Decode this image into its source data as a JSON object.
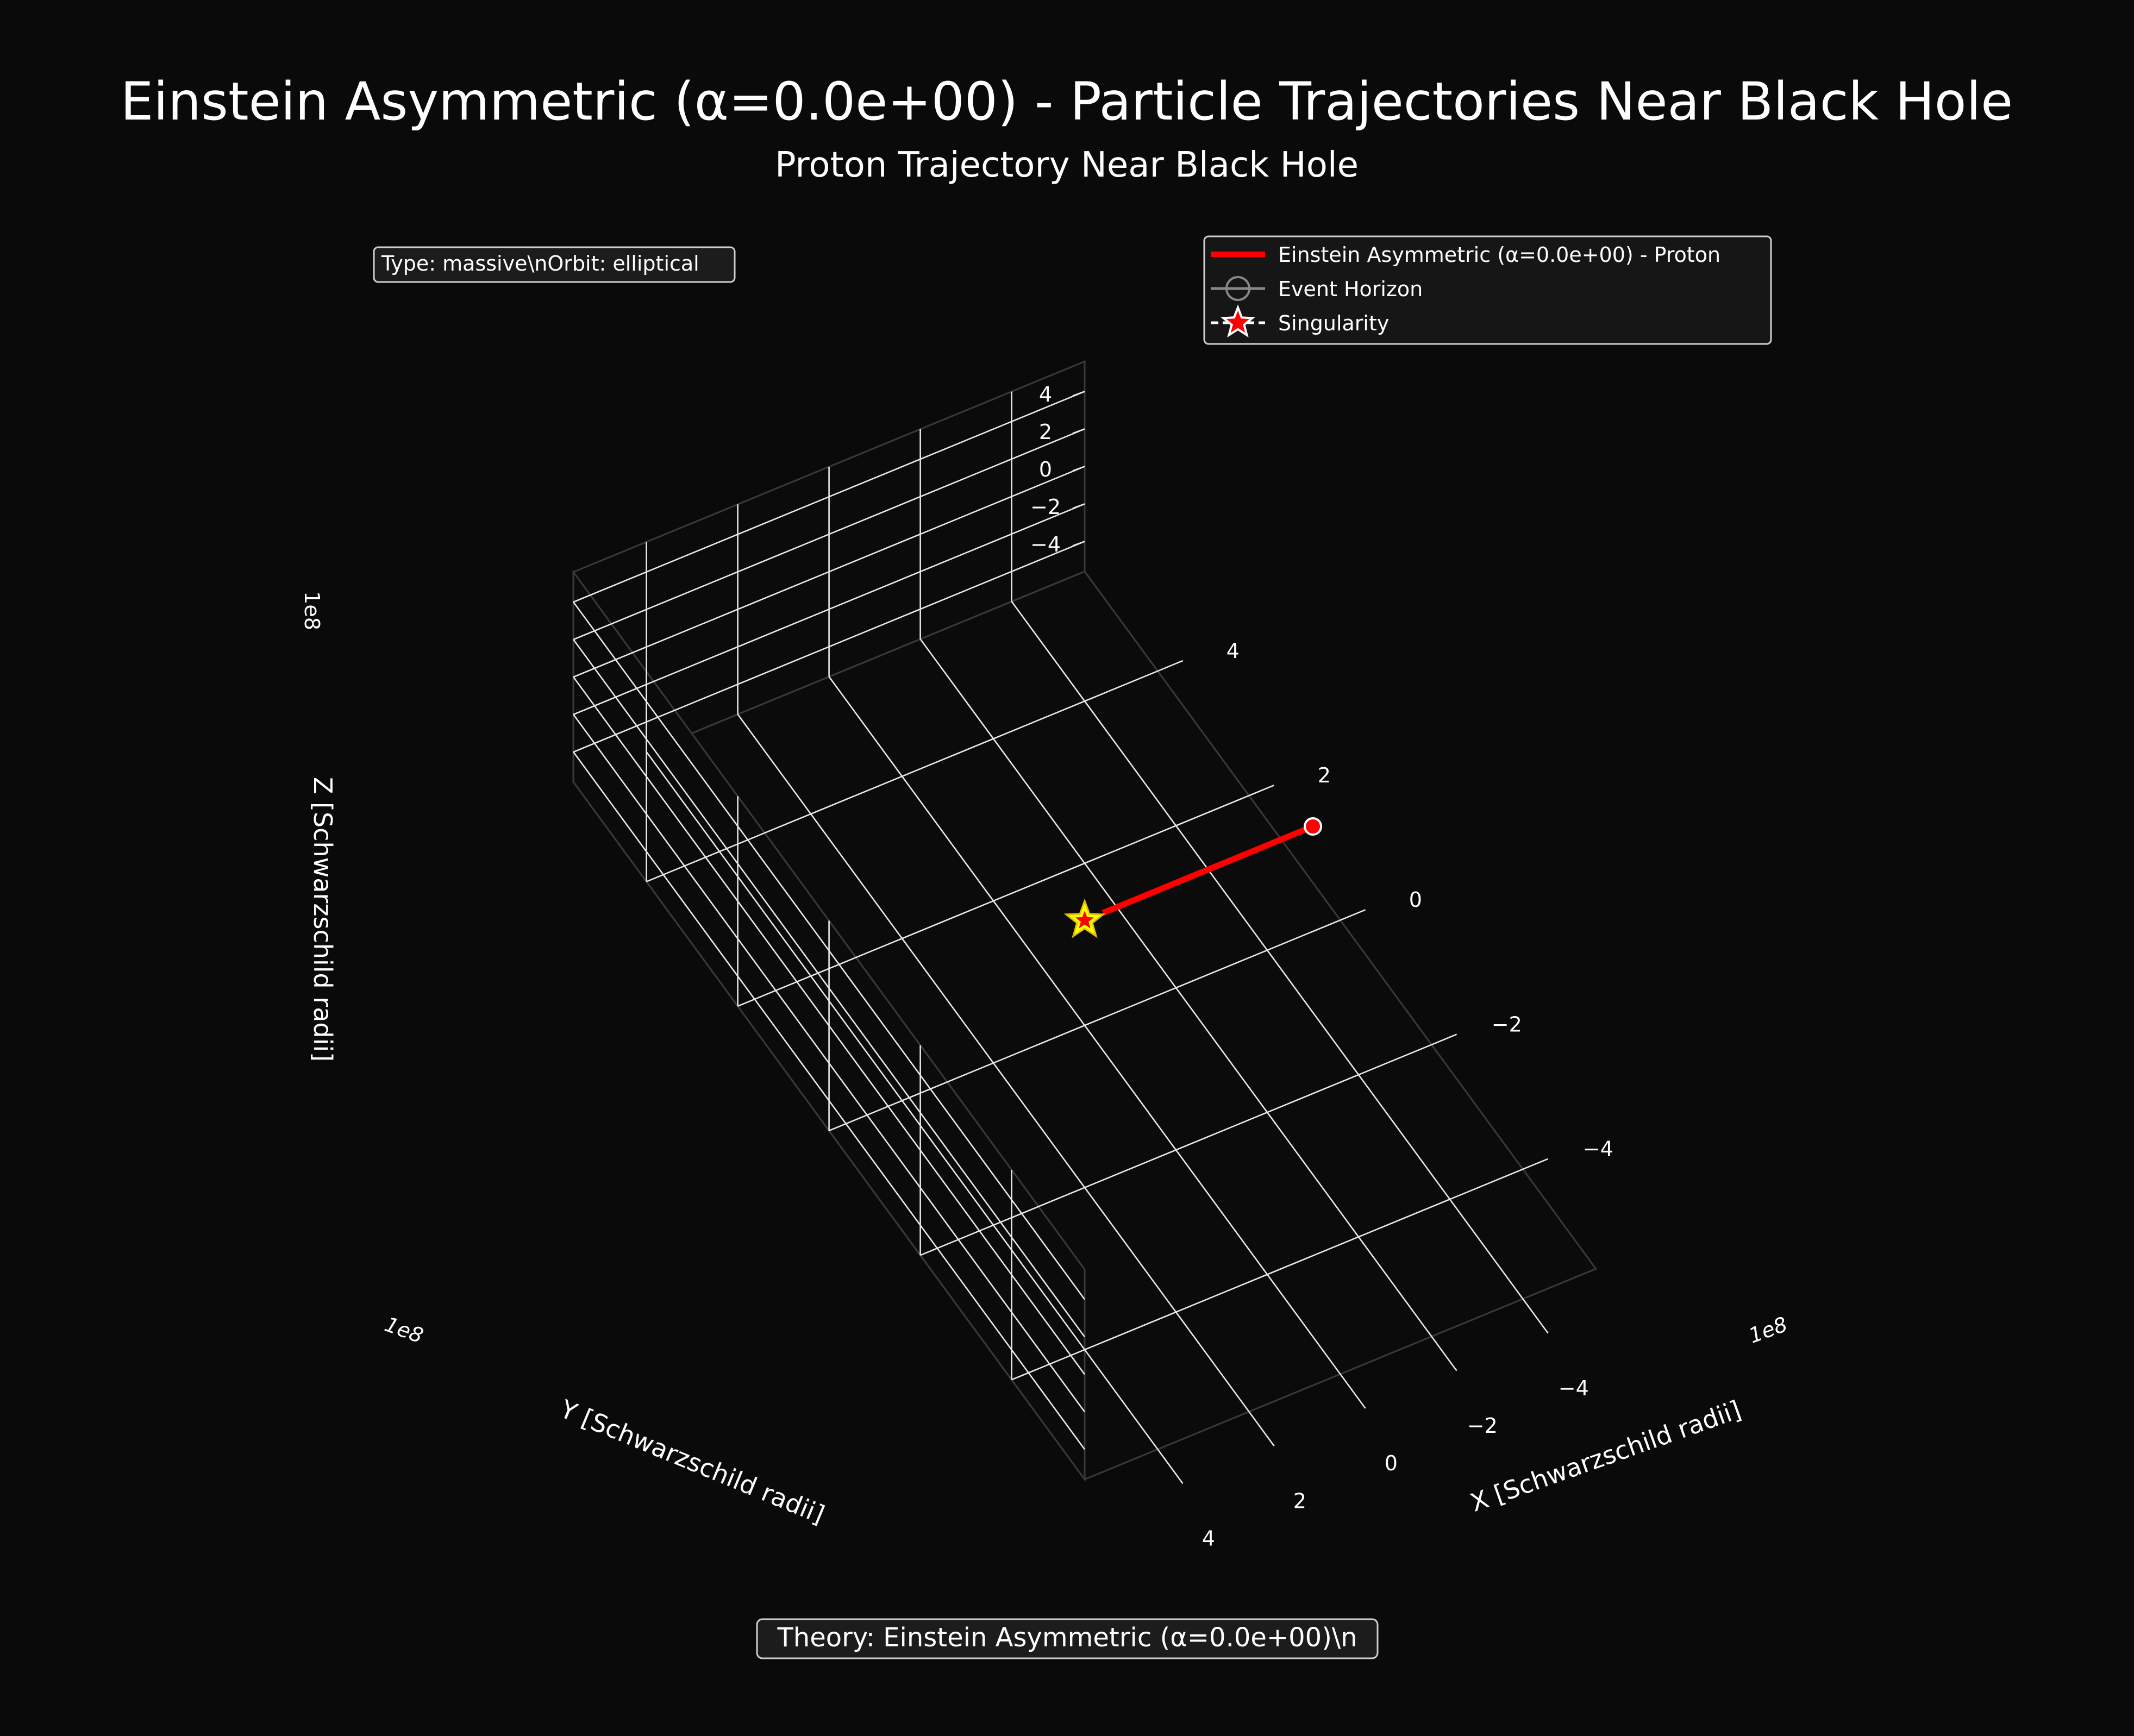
{
  "chart_data": {
    "type": "scatter",
    "projection": "3d",
    "title": "Einstein Asymmetric (α=0.0e+00) - Particle Trajectories Near Black Hole",
    "subtitle": "Proton Trajectory Near Black Hole",
    "xlabel": "X [Schwarzschild radii]",
    "ylabel": "Y [Schwarzschild radii]",
    "zlabel": "Z [Schwarzschild radii]",
    "axis_offset_label": "1e8",
    "xlim": [
      -5.6,
      5.6
    ],
    "ylim": [
      -5.6,
      5.6
    ],
    "zlim": [
      -5.6,
      5.6
    ],
    "ticks": [
      -4,
      -2,
      0,
      2,
      4
    ],
    "tick_labels": [
      "−4",
      "−2",
      "0",
      "2",
      "4"
    ],
    "grid": true,
    "legend_position": "upper-right",
    "series": [
      {
        "name": "Einstein Asymmetric (α=0.0e+00) - Proton",
        "color": "#ff0000",
        "points": [
          {
            "x": 0.0,
            "y": -5.0,
            "z": 0.0
          },
          {
            "x": 0.0,
            "y": -0.4,
            "z": 0.0
          }
        ],
        "start_marker": {
          "x": 0.0,
          "y": -5.0,
          "z": 0.0,
          "color": "#ff0000"
        }
      }
    ],
    "event_horizon": {
      "name": "Event Horizon",
      "color": "#888888"
    },
    "singularity": {
      "name": "Singularity",
      "x": 0,
      "y": 0,
      "z": 0,
      "color": "#ffff00",
      "edge_color": "#ff0000"
    },
    "annotation_info": "Type: massive\\nOrbit: elliptical",
    "annotation_theory": "Theory: Einstein Asymmetric (α=0.0e+00)\\n"
  }
}
